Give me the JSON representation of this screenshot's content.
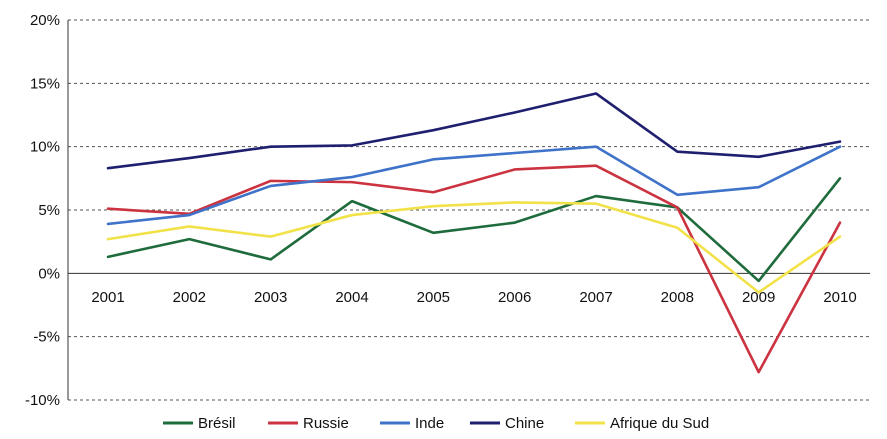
{
  "chart_data": {
    "type": "line",
    "categories": [
      "2001",
      "2002",
      "2003",
      "2004",
      "2005",
      "2006",
      "2007",
      "2008",
      "2009",
      "2010"
    ],
    "ylim": [
      -10,
      20
    ],
    "yticks": [
      -10,
      -5,
      0,
      5,
      10,
      15,
      20
    ],
    "ytick_labels": [
      "-10%",
      "-5%",
      "0%",
      "5%",
      "10%",
      "15%",
      "20%"
    ],
    "grid": true,
    "legend_position": "bottom",
    "series": [
      {
        "name": "Brésil",
        "color": "#1e6b3c",
        "values": [
          1.3,
          2.7,
          1.1,
          5.7,
          3.2,
          4.0,
          6.1,
          5.2,
          -0.6,
          7.5
        ]
      },
      {
        "name": "Russie",
        "color": "#cc3340",
        "values": [
          5.1,
          4.7,
          7.3,
          7.2,
          6.4,
          8.2,
          8.5,
          5.2,
          -7.8,
          4.0
        ]
      },
      {
        "name": "Inde",
        "color": "#3f72c9",
        "values": [
          3.9,
          4.6,
          6.9,
          7.6,
          9.0,
          9.5,
          10.0,
          6.2,
          6.8,
          10.0
        ]
      },
      {
        "name": "Chine",
        "color": "#1e1f6e",
        "values": [
          8.3,
          9.1,
          10.0,
          10.1,
          11.3,
          12.7,
          14.2,
          9.6,
          9.2,
          10.4
        ]
      },
      {
        "name": "Afrique du Sud",
        "color": "#f2e24a",
        "values": [
          2.7,
          3.7,
          2.9,
          4.6,
          5.3,
          5.6,
          5.5,
          3.6,
          -1.5,
          2.9
        ]
      }
    ]
  }
}
